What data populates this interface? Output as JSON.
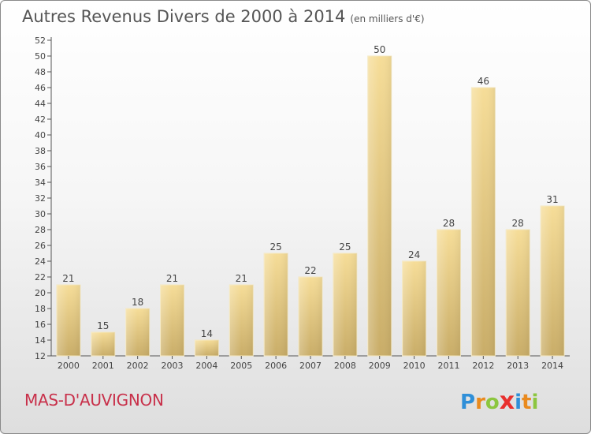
{
  "title": "Autres Revenus Divers de 2000 à 2014",
  "title_unit": "(en milliers d'€)",
  "commune": "MAS-D'AUVIGNON",
  "logo": {
    "text": "Proxiti",
    "letters": [
      {
        "ch": "P",
        "color": "#2f8fd8"
      },
      {
        "ch": "r",
        "color": "#e98a1e"
      },
      {
        "ch": "o",
        "color": "#8cc63f"
      },
      {
        "ch": "x",
        "color": "#e8302e"
      },
      {
        "ch": "i",
        "color": "#2f8fd8"
      },
      {
        "ch": "t",
        "color": "#e98a1e"
      },
      {
        "ch": "i",
        "color": "#8cc63f"
      }
    ]
  },
  "colors": {
    "bar_light": "#f6dd98",
    "bar_dark": "#c9ad68",
    "text": "#444444",
    "grid": "#cccccc"
  },
  "chart_data": {
    "type": "bar",
    "categories": [
      "2000",
      "2001",
      "2002",
      "2003",
      "2004",
      "2005",
      "2006",
      "2007",
      "2008",
      "2009",
      "2010",
      "2011",
      "2012",
      "2013",
      "2014"
    ],
    "values": [
      21,
      15,
      18,
      21,
      14,
      21,
      25,
      22,
      25,
      50,
      24,
      28,
      46,
      28,
      31
    ],
    "ylim": [
      12,
      52
    ],
    "yticks": [
      12,
      14,
      16,
      18,
      20,
      22,
      24,
      26,
      28,
      30,
      32,
      34,
      36,
      38,
      40,
      42,
      44,
      46,
      48,
      50,
      52
    ],
    "grid": false,
    "legend": "none"
  }
}
